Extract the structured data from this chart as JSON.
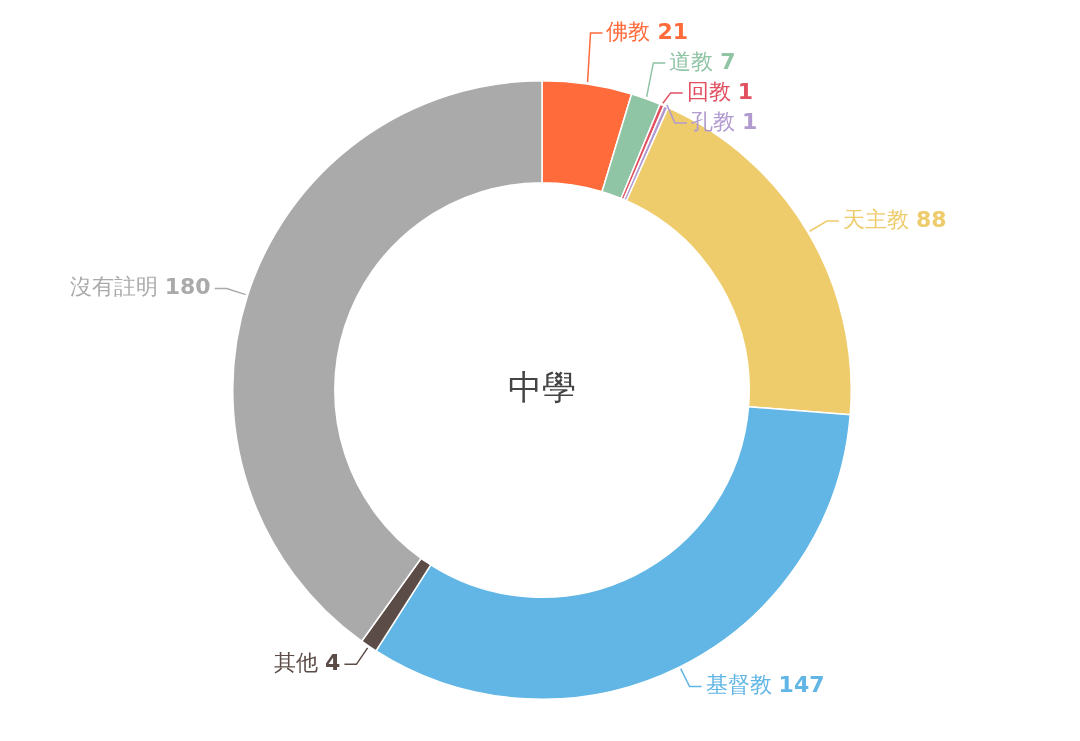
{
  "chart_data": {
    "type": "donut",
    "title": "中學",
    "categories": [
      "佛教",
      "道教",
      "回教",
      "孔教",
      "天主教",
      "基督教",
      "其他",
      "沒有註明"
    ],
    "values": [
      21,
      7,
      1,
      1,
      88,
      147,
      4,
      180
    ],
    "colors": [
      "#ff6b3b",
      "#8fc4a4",
      "#e05060",
      "#b09ad0",
      "#eecb6b",
      "#62b6e5",
      "#5b4c47",
      "#aaaaaa"
    ],
    "data_labels": true
  }
}
